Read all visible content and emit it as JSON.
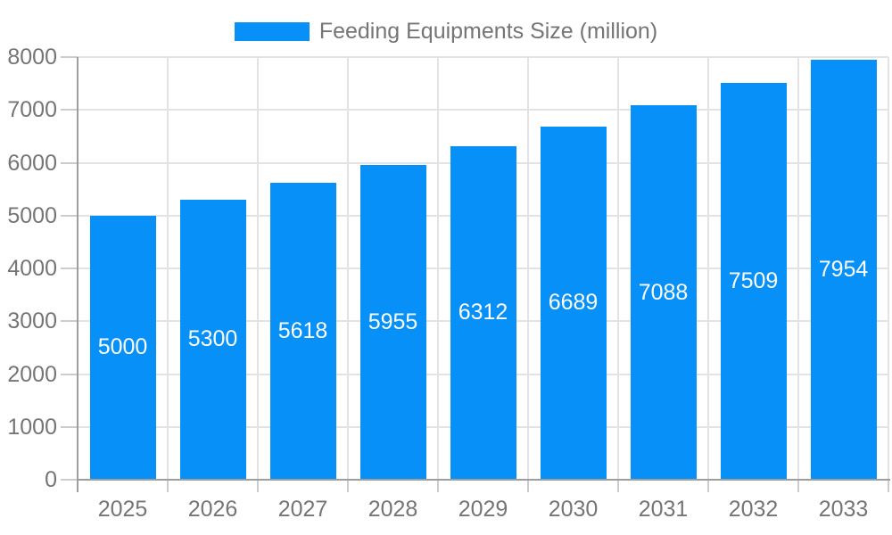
{
  "legend": {
    "label": "Feeding Equipments Size (million)"
  },
  "chart_data": {
    "type": "bar",
    "title": "Feeding Equipments Size (million)",
    "categories": [
      "2025",
      "2026",
      "2027",
      "2028",
      "2029",
      "2030",
      "2031",
      "2032",
      "2033"
    ],
    "series": [
      {
        "name": "Feeding Equipments Size (million)",
        "values": [
          5000,
          5300,
          5618,
          5955,
          6312,
          6689,
          7088,
          7509,
          7954
        ]
      }
    ],
    "xlabel": "",
    "ylabel": "",
    "ylim": [
      0,
      8000
    ],
    "ytick_step": 1000,
    "yticks": [
      0,
      1000,
      2000,
      3000,
      4000,
      5000,
      6000,
      7000,
      8000
    ],
    "grid": true,
    "legend_position": "top-center",
    "value_label_position": "inside-center",
    "colors": {
      "bar": "#0690F8",
      "value_label": "#FFFFFF",
      "axis_text": "#757575",
      "gridline": "#E3E3E3",
      "tick": "#CCCCCC",
      "axis_line": "#9E9E9E",
      "background": "#FFFFFF"
    }
  }
}
